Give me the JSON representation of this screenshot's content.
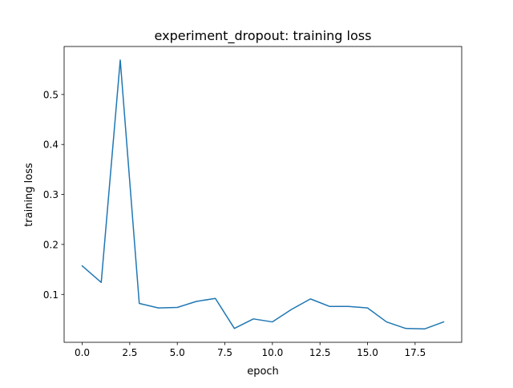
{
  "chart_data": {
    "type": "line",
    "title": "experiment_dropout: training loss",
    "xlabel": "epoch",
    "ylabel": "training loss",
    "xlim": [
      -0.95,
      19.95
    ],
    "ylim": [
      0.0042,
      0.596
    ],
    "xticks": [
      0.0,
      2.5,
      5.0,
      7.5,
      10.0,
      12.5,
      15.0,
      17.5
    ],
    "xtick_labels": [
      "0.0",
      "2.5",
      "5.0",
      "7.5",
      "10.0",
      "12.5",
      "15.0",
      "17.5"
    ],
    "yticks": [
      0.1,
      0.2,
      0.3,
      0.4,
      0.5
    ],
    "ytick_labels": [
      "0.1",
      "0.2",
      "0.3",
      "0.4",
      "0.5"
    ],
    "grid": false,
    "series": [
      {
        "color": "#1f77b4",
        "x": [
          0,
          1,
          2,
          3,
          4,
          5,
          6,
          7,
          8,
          9,
          10,
          11,
          12,
          13,
          14,
          15,
          16,
          17,
          18,
          19
        ],
        "y": [
          0.157,
          0.124,
          0.569,
          0.082,
          0.073,
          0.074,
          0.086,
          0.092,
          0.032,
          0.051,
          0.045,
          0.07,
          0.091,
          0.076,
          0.076,
          0.073,
          0.045,
          0.032,
          0.031,
          0.045
        ]
      }
    ]
  }
}
